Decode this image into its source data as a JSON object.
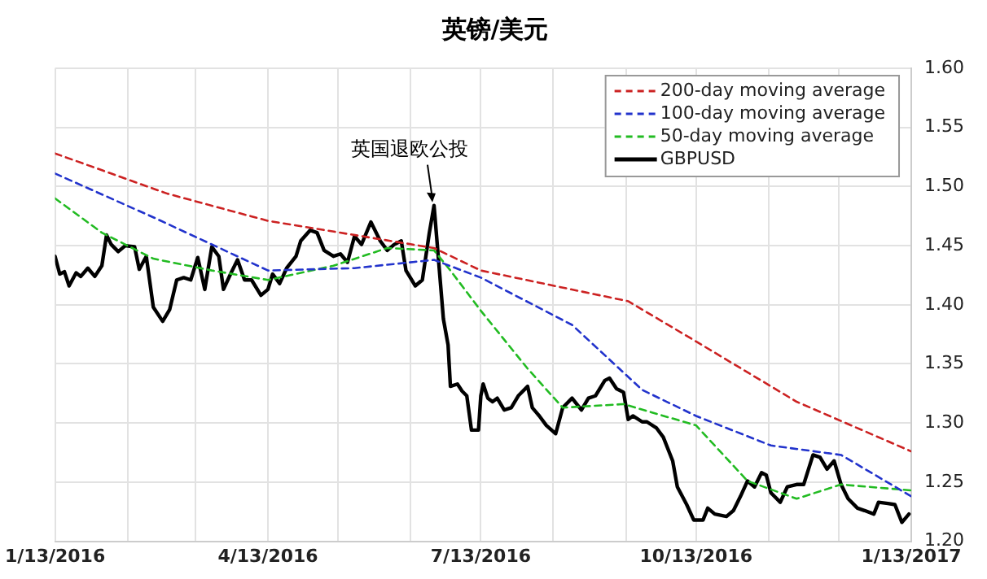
{
  "chart_data": {
    "type": "line",
    "title": "英镑/美元",
    "legend": "top right",
    "grid": true,
    "marker": "none",
    "xlim": [
      "2016-01-13",
      "2017-01-13"
    ],
    "xticks": [
      {
        "value": "2016-01-13",
        "label": "1/13/2016"
      },
      {
        "value": "2016-02-13",
        "label": null
      },
      {
        "value": "2016-03-13",
        "label": null
      },
      {
        "value": "2016-04-13",
        "label": "4/13/2016"
      },
      {
        "value": "2016-05-13",
        "label": null
      },
      {
        "value": "2016-06-13",
        "label": null
      },
      {
        "value": "2016-07-13",
        "label": "7/13/2016"
      },
      {
        "value": "2016-08-13",
        "label": null
      },
      {
        "value": "2016-09-13",
        "label": null
      },
      {
        "value": "2016-10-13",
        "label": "10/13/2016"
      },
      {
        "value": "2016-11-13",
        "label": null
      },
      {
        "value": "2016-12-13",
        "label": null
      },
      {
        "value": "2017-01-13",
        "label": "1/13/2017"
      }
    ],
    "ylim": [
      1.2,
      1.6
    ],
    "yticks": [
      {
        "value": 1.2,
        "label": "1.20"
      },
      {
        "value": 1.25,
        "label": "1.25"
      },
      {
        "value": 1.3,
        "label": "1.30"
      },
      {
        "value": 1.35,
        "label": "1.35"
      },
      {
        "value": 1.4,
        "label": "1.40"
      },
      {
        "value": 1.45,
        "label": "1.45"
      },
      {
        "value": 1.5,
        "label": "1.50"
      },
      {
        "value": 1.55,
        "label": "1.55"
      },
      {
        "value": 1.6,
        "label": "1.60"
      }
    ],
    "annotations": [
      {
        "text": "英国退欧公投",
        "x": "2016-06-23",
        "y": 1.484
      }
    ],
    "series": [
      {
        "name": "200-day moving average",
        "color": "#cc2222",
        "line_style": "dashed",
        "x": [
          "2016-01-13",
          "2016-03-01",
          "2016-04-13",
          "2016-06-23",
          "2016-07-13",
          "2016-09-14",
          "2016-10-13",
          "2016-11-25",
          "2017-01-13"
        ],
        "values": [
          1.528,
          1.494,
          1.471,
          1.448,
          1.429,
          1.403,
          1.369,
          1.318,
          1.276
        ]
      },
      {
        "name": "100-day moving average",
        "color": "#2233cc",
        "line_style": "dashed",
        "x": [
          "2016-01-13",
          "2016-02-24",
          "2016-04-13",
          "2016-05-20",
          "2016-06-23",
          "2016-07-13",
          "2016-08-21",
          "2016-09-20",
          "2016-10-13",
          "2016-11-14",
          "2016-12-14",
          "2017-01-13"
        ],
        "values": [
          1.511,
          1.474,
          1.429,
          1.431,
          1.438,
          1.423,
          1.383,
          1.328,
          1.306,
          1.281,
          1.273,
          1.238
        ]
      },
      {
        "name": "50-day moving average",
        "color": "#22bb22",
        "line_style": "dashed",
        "x": [
          "2016-01-13",
          "2016-02-02",
          "2016-02-24",
          "2016-03-20",
          "2016-04-13",
          "2016-05-11",
          "2016-06-03",
          "2016-06-23",
          "2016-06-30",
          "2016-07-13",
          "2016-08-02",
          "2016-08-17",
          "2016-09-12",
          "2016-10-13",
          "2016-11-04",
          "2016-11-25",
          "2016-12-14",
          "2017-01-13"
        ],
        "values": [
          1.49,
          1.461,
          1.439,
          1.429,
          1.421,
          1.433,
          1.448,
          1.446,
          1.429,
          1.395,
          1.346,
          1.313,
          1.316,
          1.298,
          1.251,
          1.236,
          1.248,
          1.243
        ]
      },
      {
        "name": "GBPUSD",
        "color": "#000000",
        "line_style": "solid",
        "x": [
          "2016-01-13",
          "2016-01-15",
          "2016-01-17",
          "2016-01-19",
          "2016-01-22",
          "2016-01-24",
          "2016-01-27",
          "2016-01-30",
          "2016-02-02",
          "2016-02-04",
          "2016-02-06",
          "2016-02-09",
          "2016-02-12",
          "2016-02-16",
          "2016-02-18",
          "2016-02-21",
          "2016-02-24",
          "2016-02-28",
          "2016-03-02",
          "2016-03-05",
          "2016-03-08",
          "2016-03-11",
          "2016-03-14",
          "2016-03-17",
          "2016-03-20",
          "2016-03-23",
          "2016-03-25",
          "2016-03-28",
          "2016-03-31",
          "2016-04-03",
          "2016-04-06",
          "2016-04-10",
          "2016-04-13",
          "2016-04-15",
          "2016-04-18",
          "2016-04-21",
          "2016-04-25",
          "2016-04-27",
          "2016-05-01",
          "2016-05-04",
          "2016-05-07",
          "2016-05-11",
          "2016-05-14",
          "2016-05-17",
          "2016-05-20",
          "2016-05-23",
          "2016-05-27",
          "2016-05-31",
          "2016-06-03",
          "2016-06-06",
          "2016-06-09",
          "2016-06-11",
          "2016-06-15",
          "2016-06-18",
          "2016-06-21",
          "2016-06-23",
          "2016-06-27",
          "2016-06-29",
          "2016-06-30",
          "2016-07-03",
          "2016-07-05",
          "2016-07-07",
          "2016-07-09",
          "2016-07-12",
          "2016-07-13",
          "2016-07-14",
          "2016-07-16",
          "2016-07-18",
          "2016-07-20",
          "2016-07-23",
          "2016-07-26",
          "2016-07-29",
          "2016-08-02",
          "2016-08-04",
          "2016-08-07",
          "2016-08-10",
          "2016-08-14",
          "2016-08-17",
          "2016-08-21",
          "2016-08-25",
          "2016-08-28",
          "2016-08-31",
          "2016-09-04",
          "2016-09-06",
          "2016-09-09",
          "2016-09-12",
          "2016-09-14",
          "2016-09-16",
          "2016-09-20",
          "2016-09-22",
          "2016-09-26",
          "2016-09-29",
          "2016-10-03",
          "2016-10-05",
          "2016-10-09",
          "2016-10-12",
          "2016-10-16",
          "2016-10-18",
          "2016-10-21",
          "2016-10-26",
          "2016-10-29",
          "2016-11-01",
          "2016-11-04",
          "2016-11-07",
          "2016-11-10",
          "2016-11-12",
          "2016-11-14",
          "2016-11-18",
          "2016-11-21",
          "2016-11-25",
          "2016-11-28",
          "2016-12-02",
          "2016-12-05",
          "2016-12-08",
          "2016-12-11",
          "2016-12-14",
          "2016-12-17",
          "2016-12-21",
          "2016-12-24",
          "2016-12-28",
          "2016-12-30",
          "2017-01-03",
          "2017-01-06",
          "2017-01-09",
          "2017-01-12"
        ],
        "values": [
          1.441,
          1.426,
          1.428,
          1.416,
          1.427,
          1.424,
          1.431,
          1.424,
          1.433,
          1.459,
          1.451,
          1.445,
          1.45,
          1.449,
          1.43,
          1.441,
          1.398,
          1.386,
          1.396,
          1.421,
          1.423,
          1.421,
          1.44,
          1.413,
          1.449,
          1.441,
          1.413,
          1.426,
          1.438,
          1.421,
          1.421,
          1.408,
          1.413,
          1.426,
          1.418,
          1.431,
          1.441,
          1.454,
          1.463,
          1.461,
          1.446,
          1.441,
          1.443,
          1.436,
          1.458,
          1.451,
          1.47,
          1.454,
          1.446,
          1.451,
          1.454,
          1.429,
          1.416,
          1.421,
          1.461,
          1.484,
          1.388,
          1.366,
          1.331,
          1.333,
          1.327,
          1.323,
          1.294,
          1.294,
          1.323,
          1.333,
          1.321,
          1.318,
          1.321,
          1.311,
          1.313,
          1.323,
          1.331,
          1.313,
          1.306,
          1.298,
          1.291,
          1.313,
          1.321,
          1.311,
          1.321,
          1.323,
          1.336,
          1.338,
          1.329,
          1.326,
          1.303,
          1.306,
          1.301,
          1.301,
          1.296,
          1.288,
          1.268,
          1.246,
          1.231,
          1.218,
          1.218,
          1.228,
          1.223,
          1.221,
          1.226,
          1.238,
          1.251,
          1.246,
          1.258,
          1.256,
          1.241,
          1.233,
          1.246,
          1.248,
          1.248,
          1.273,
          1.271,
          1.261,
          1.268,
          1.248,
          1.236,
          1.228,
          1.226,
          1.223,
          1.233,
          1.232,
          1.231,
          1.216,
          1.223
        ]
      }
    ]
  }
}
